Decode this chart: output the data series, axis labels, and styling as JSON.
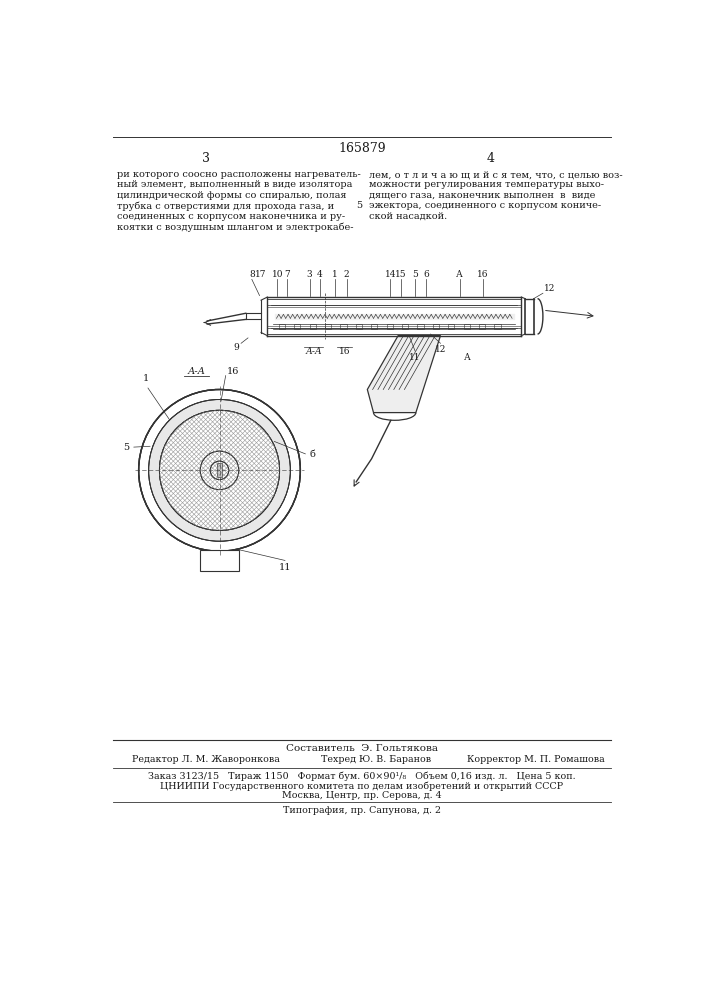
{
  "patent_number": "165879",
  "page_left": "3",
  "page_right": "4",
  "left_text_lines": [
    "ри которого соосно расположены нагреватель-",
    "ный элемент, выполненный в виде изолятора",
    "цилиндрической формы со спиралью, полая",
    "трубка с отверстиями для прохода газа, и",
    "соединенных с корпусом наконечника и ру-",
    "коятки с воздушным шлангом и электрокабе-"
  ],
  "right_text_lines": [
    "лем, о т л и ч а ю щ и й с я тем, что, с целью воз-",
    "можности регулирования температуры выхо-",
    "дящего газа, наконечник выполнен  в  виде",
    "эжектора, соединенного с корпусом кониче-",
    "ской насадкой."
  ],
  "line_number": "5",
  "composer": "Составитель  Э. Гольтякова",
  "editor": "Редактор Л. М. Жаворонкова",
  "tech": "Техред Ю. В. Баранов",
  "corrector": "Корректор М. П. Ромашова",
  "footer_line1": "Заказ 3123/15   Тираж 1150   Формат бум. 60×90¹/₈   Объем 0,16 изд. л.   Цена 5 коп.",
  "footer_line2": "ЦНИИПИ Государственного комитета по делам изобретений и открытий СССР",
  "footer_line3": "Москва, Центр, пр. Серова, д. 4",
  "footer_line4": "Типография, пр. Сапунова, д. 2",
  "bg_color": "#ffffff",
  "text_color": "#1a1a1a",
  "line_color": "#333333"
}
